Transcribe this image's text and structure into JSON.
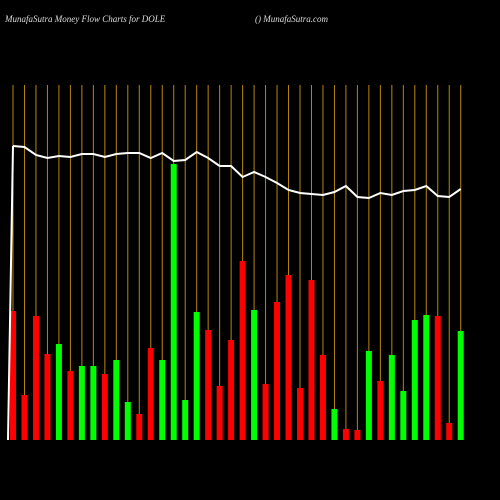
{
  "chart_data": {
    "type": "bar",
    "title": "MunafaSutra  Money Flow  Charts for DOLE",
    "subtitle": "() MunafaSutra.com",
    "categories": [
      null,
      null,
      null,
      null,
      null,
      null,
      null,
      null,
      null,
      null,
      null,
      null,
      null,
      null,
      null,
      null,
      null,
      null,
      null,
      null,
      null,
      null,
      null,
      null,
      null,
      null,
      null,
      null,
      null,
      null,
      null,
      null,
      null,
      null,
      null,
      null,
      null,
      null,
      null,
      null
    ],
    "ylim": [
      0,
      355
    ],
    "bars": {
      "values": [
        129,
        45,
        124,
        86,
        96,
        69,
        74,
        74,
        66,
        80,
        38,
        26,
        92,
        80,
        276,
        40,
        128,
        110,
        54,
        100,
        179,
        130,
        56,
        138,
        165,
        52,
        160,
        85,
        31,
        11,
        10,
        89,
        59,
        85,
        49,
        120,
        125,
        124,
        17,
        109
      ],
      "colors": [
        "#ff0000",
        "#ff0000",
        "#ff0000",
        "#ff0000",
        "#00ff00",
        "#ff0000",
        "#00ff00",
        "#00ff00",
        "#ff0000",
        "#00ff00",
        "#00ff00",
        "#ff0000",
        "#ff0000",
        "#00ff00",
        "#00ff00",
        "#00ff00",
        "#00ff00",
        "#ff0000",
        "#ff0000",
        "#ff0000",
        "#ff0000",
        "#00ff00",
        "#ff0000",
        "#ff0000",
        "#ff0000",
        "#ff0000",
        "#ff0000",
        "#ff0000",
        "#00ff00",
        "#ff0000",
        "#ff0000",
        "#00ff00",
        "#ff0000",
        "#00ff00",
        "#00ff00",
        "#00ff00",
        "#00ff00",
        "#ff0000",
        "#ff0000",
        "#00ff00"
      ]
    },
    "line": {
      "color": "#ffffff",
      "values": [
        294,
        293,
        285,
        282,
        284,
        283,
        286,
        286,
        283,
        286,
        287,
        287,
        282,
        287,
        279,
        280,
        288,
        282,
        274,
        274,
        263,
        268,
        263,
        257,
        250,
        247,
        246,
        245,
        248,
        254,
        243,
        242,
        247,
        245,
        249,
        250,
        254,
        244,
        243,
        251
      ]
    },
    "gridline_color": "#b8860b"
  }
}
